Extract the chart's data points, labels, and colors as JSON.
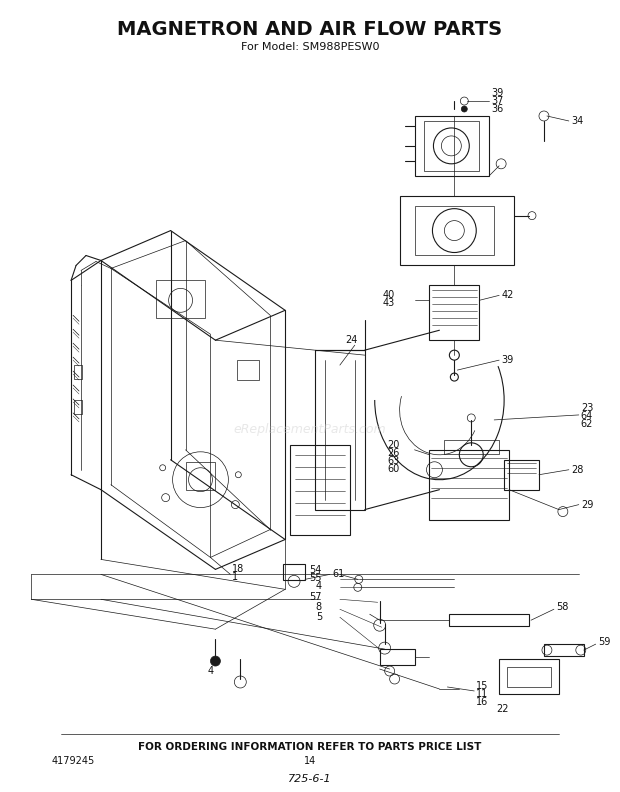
{
  "title": "MAGNETRON AND AIR FLOW PARTS",
  "subtitle": "For Model: SM988PESW0",
  "footer_text": "FOR ORDERING INFORMATION REFER TO PARTS PRICE LIST",
  "page_number": "14",
  "part_number_left": "4179245",
  "diagram_code": "725-6-1",
  "watermark": "eReplacementParts.com",
  "bg_color": "#ffffff",
  "lc": "#1a1a1a",
  "title_fontsize": 14,
  "subtitle_fontsize": 8,
  "footer_fontsize": 7,
  "label_fontsize": 7
}
